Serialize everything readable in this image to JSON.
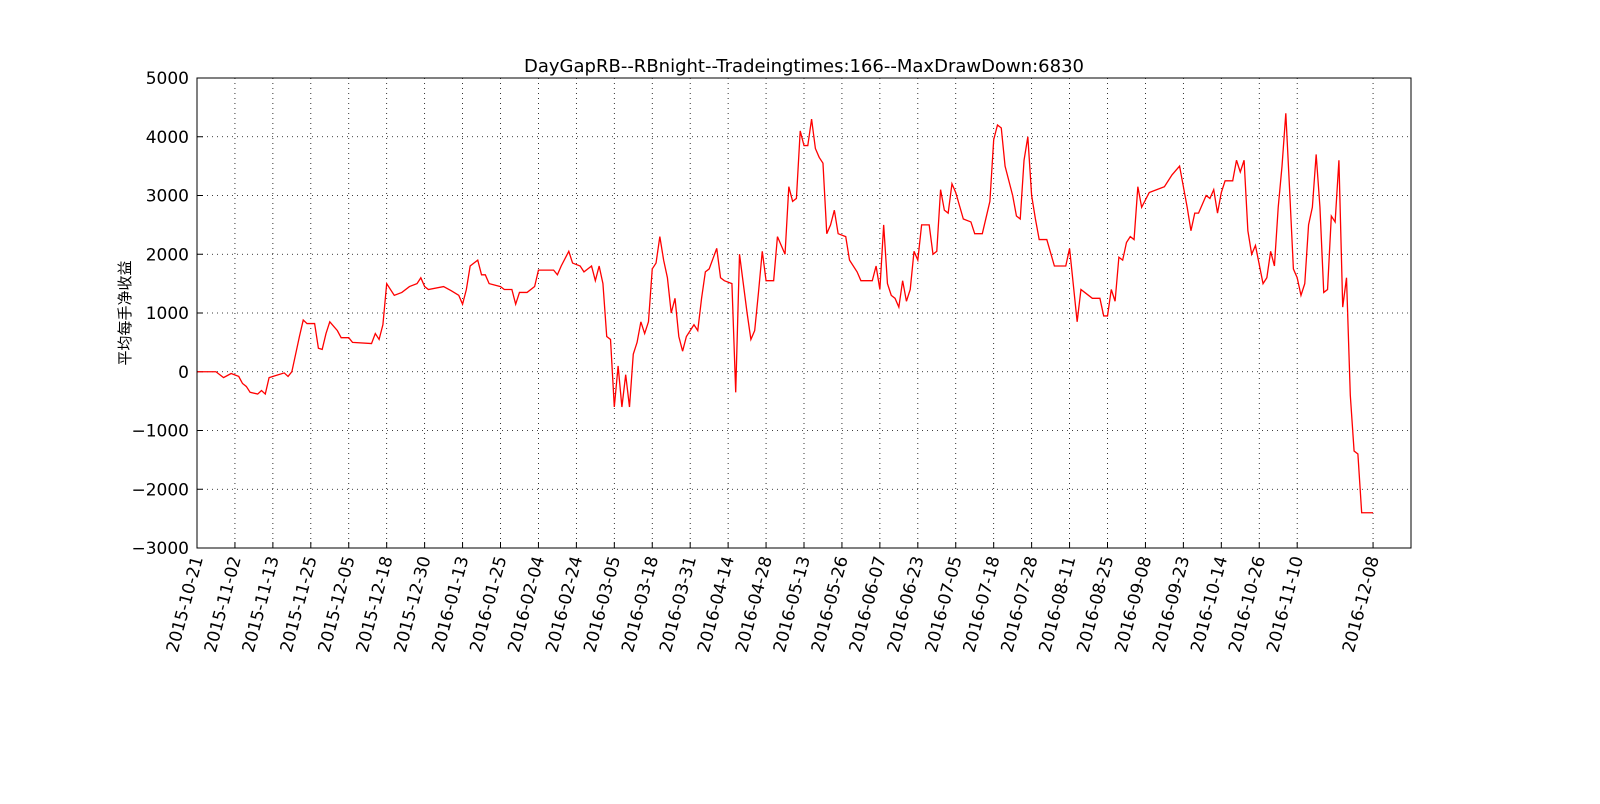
{
  "chart_data": {
    "type": "line",
    "title": "DayGapRB--RBnight--Tradeingtimes:166--MaxDrawDown:6830",
    "ylabel": "平均每手净收益",
    "color": "#ff0000",
    "grid": true,
    "xlim": [
      0,
      320
    ],
    "xticks": [
      {
        "value": 0,
        "label": "2015-10-21"
      },
      {
        "value": 10,
        "label": "2015-11-02"
      },
      {
        "value": 20,
        "label": "2015-11-13"
      },
      {
        "value": 30,
        "label": "2015-11-25"
      },
      {
        "value": 40,
        "label": "2015-12-05"
      },
      {
        "value": 50,
        "label": "2015-12-18"
      },
      {
        "value": 60,
        "label": "2015-12-30"
      },
      {
        "value": 70,
        "label": "2016-01-13"
      },
      {
        "value": 80,
        "label": "2016-01-25"
      },
      {
        "value": 90,
        "label": "2016-02-04"
      },
      {
        "value": 100,
        "label": "2016-02-24"
      },
      {
        "value": 110,
        "label": "2016-03-05"
      },
      {
        "value": 120,
        "label": "2016-03-18"
      },
      {
        "value": 130,
        "label": "2016-03-31"
      },
      {
        "value": 140,
        "label": "2016-04-14"
      },
      {
        "value": 150,
        "label": "2016-04-28"
      },
      {
        "value": 160,
        "label": "2016-05-13"
      },
      {
        "value": 170,
        "label": "2016-05-26"
      },
      {
        "value": 180,
        "label": "2016-06-07"
      },
      {
        "value": 190,
        "label": "2016-06-23"
      },
      {
        "value": 200,
        "label": "2016-07-05"
      },
      {
        "value": 210,
        "label": "2016-07-18"
      },
      {
        "value": 220,
        "label": "2016-07-28"
      },
      {
        "value": 230,
        "label": "2016-08-11"
      },
      {
        "value": 240,
        "label": "2016-08-25"
      },
      {
        "value": 250,
        "label": "2016-09-08"
      },
      {
        "value": 260,
        "label": "2016-09-23"
      },
      {
        "value": 270,
        "label": "2016-10-14"
      },
      {
        "value": 280,
        "label": "2016-10-26"
      },
      {
        "value": 290,
        "label": "2016-11-10"
      },
      {
        "value": 310,
        "label": "2016-12-08"
      }
    ],
    "ylim": [
      -3000,
      5000
    ],
    "yticks": [
      {
        "value": -3000,
        "label": "−3000"
      },
      {
        "value": -2000,
        "label": "−2000"
      },
      {
        "value": -1000,
        "label": "−1000"
      },
      0,
      1000,
      2000,
      3000,
      4000,
      5000
    ],
    "x": [
      0,
      5,
      7,
      9,
      11,
      12,
      13,
      14,
      16,
      17,
      18,
      19,
      21,
      23,
      24,
      25,
      26,
      27,
      28,
      29,
      31,
      32,
      33,
      34,
      35,
      37,
      38,
      40,
      41,
      46,
      47,
      48,
      49,
      50,
      52,
      54,
      56,
      58,
      59,
      60,
      61,
      65,
      67,
      69,
      70,
      71,
      72,
      74,
      75,
      76,
      77,
      80,
      81,
      83,
      84,
      85,
      87,
      89,
      90,
      94,
      95,
      96,
      98,
      99,
      101,
      102,
      104,
      105,
      106,
      107,
      108,
      109,
      110,
      111,
      112,
      113,
      114,
      115,
      116,
      117,
      118,
      119,
      120,
      121,
      122,
      123,
      124,
      125,
      126,
      127,
      128,
      129,
      131,
      132,
      133,
      134,
      135,
      137,
      138,
      139,
      141,
      142,
      143,
      145,
      146,
      147,
      148,
      149,
      150,
      152,
      153,
      155,
      156,
      157,
      158,
      159,
      160,
      161,
      162,
      163,
      164,
      165,
      166,
      167,
      168,
      169,
      171,
      172,
      174,
      175,
      178,
      179,
      180,
      181,
      182,
      183,
      184,
      185,
      186,
      187,
      188,
      189,
      190,
      191,
      193,
      194,
      195,
      196,
      197,
      198,
      199,
      200,
      202,
      204,
      205,
      207,
      209,
      210,
      211,
      212,
      213,
      215,
      216,
      217,
      218,
      219,
      220,
      221,
      222,
      224,
      226,
      229,
      230,
      232,
      233,
      234,
      236,
      238,
      239,
      240,
      241,
      242,
      243,
      244,
      245,
      246,
      247,
      248,
      249,
      251,
      253,
      255,
      257,
      259,
      260,
      261,
      262,
      263,
      264,
      266,
      267,
      268,
      269,
      270,
      271,
      273,
      274,
      275,
      276,
      277,
      278,
      279,
      281,
      282,
      283,
      284,
      285,
      286,
      287,
      288,
      289,
      290,
      291,
      292,
      293,
      294,
      295,
      296,
      297,
      298,
      299,
      300,
      301,
      302,
      303,
      304,
      305,
      306,
      307,
      310
    ],
    "values": [
      0,
      0,
      -100,
      -30,
      -80,
      -200,
      -250,
      -350,
      -380,
      -320,
      -380,
      -100,
      -60,
      -20,
      -80,
      0,
      300,
      600,
      880,
      820,
      820,
      400,
      380,
      650,
      850,
      700,
      580,
      580,
      500,
      480,
      650,
      550,
      800,
      1500,
      1300,
      1350,
      1450,
      1500,
      1600,
      1450,
      1400,
      1450,
      1380,
      1300,
      1150,
      1400,
      1800,
      1900,
      1650,
      1650,
      1500,
      1450,
      1400,
      1400,
      1150,
      1350,
      1350,
      1450,
      1730,
      1730,
      1650,
      1800,
      2050,
      1850,
      1800,
      1700,
      1800,
      1550,
      1800,
      1500,
      600,
      550,
      -600,
      100,
      -600,
      -50,
      -600,
      300,
      500,
      850,
      650,
      850,
      1750,
      1850,
      2300,
      1900,
      1600,
      1000,
      1250,
      600,
      350,
      600,
      800,
      700,
      1250,
      1700,
      1750,
      2100,
      1600,
      1550,
      1500,
      -350,
      2000,
      1000,
      550,
      700,
      1350,
      2050,
      1550,
      1550,
      2300,
      2000,
      3150,
      2900,
      2950,
      4100,
      3850,
      3850,
      4300,
      3800,
      3650,
      3550,
      2350,
      2500,
      2750,
      2350,
      2300,
      1900,
      1700,
      1550,
      1550,
      1800,
      1400,
      2500,
      1500,
      1300,
      1250,
      1100,
      1550,
      1200,
      1400,
      2050,
      1900,
      2500,
      2500,
      2000,
      2050,
      3100,
      2750,
      2700,
      3200,
      3050,
      2600,
      2550,
      2350,
      2350,
      2900,
      3950,
      4200,
      4150,
      3500,
      3000,
      2650,
      2600,
      3600,
      4000,
      3000,
      2600,
      2250,
      2250,
      1800,
      1800,
      2100,
      850,
      1400,
      1350,
      1250,
      1250,
      950,
      950,
      1400,
      1200,
      1950,
      1900,
      2200,
      2300,
      2250,
      3150,
      2800,
      3050,
      3100,
      3150,
      3350,
      3500,
      3150,
      2800,
      2400,
      2700,
      2700,
      3000,
      2950,
      3100,
      2700,
      3050,
      3250,
      3250,
      3600,
      3400,
      3600,
      2400,
      2000,
      2150,
      1500,
      1600,
      2050,
      1800,
      2800,
      3500,
      4400,
      3100,
      1750,
      1600,
      1300,
      1500,
      2500,
      2800,
      3700,
      2800,
      1350,
      1400,
      2650,
      2550,
      3600,
      1100,
      1600,
      -400,
      -1350,
      -1400,
      -2400,
      -2400
    ]
  }
}
